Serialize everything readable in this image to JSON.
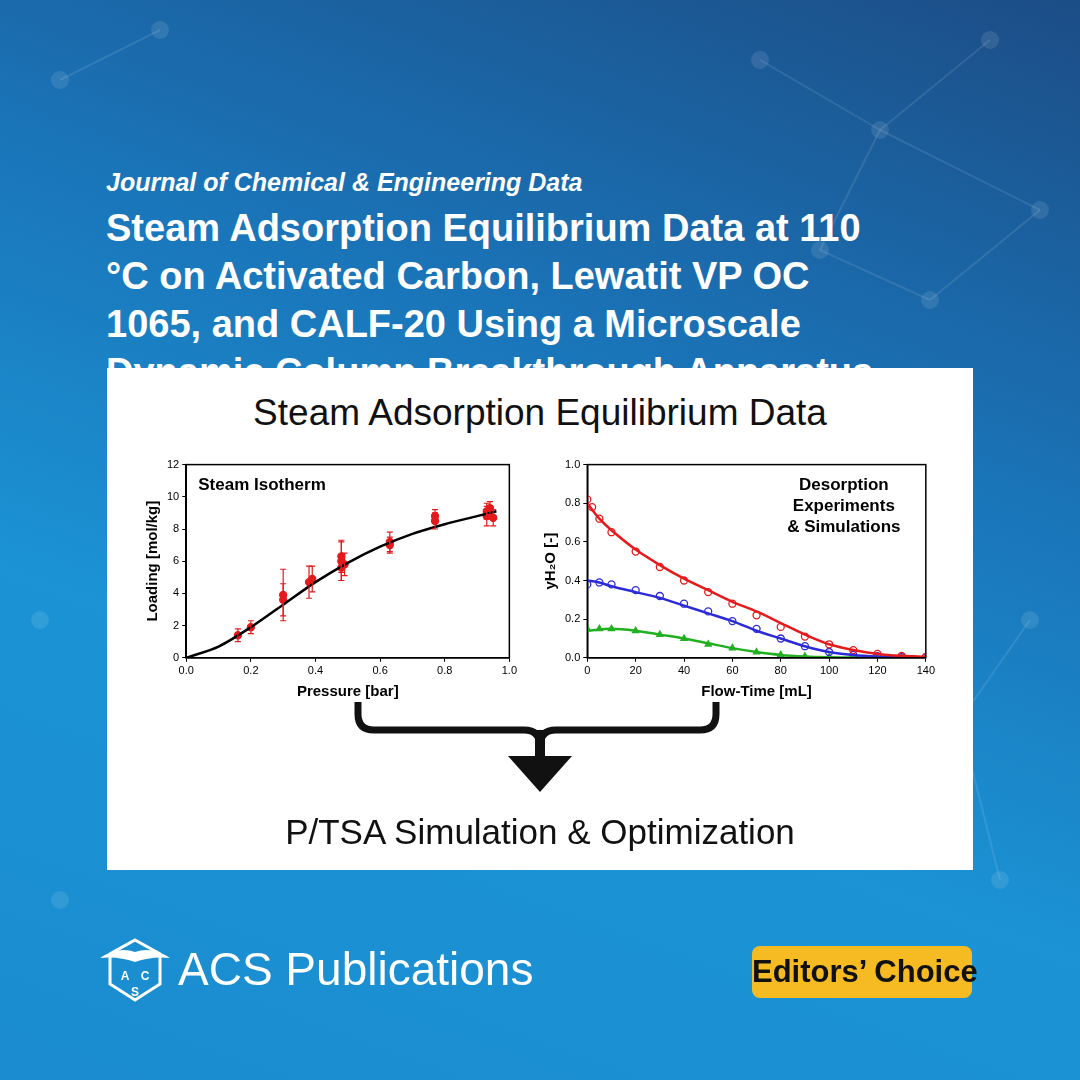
{
  "header": {
    "journal": "Journal of Chemical & Engineering Data",
    "title_lines": [
      "Steam Adsorption Equilibrium Data at 110",
      "°C on Activated Carbon, Lewatit VP OC",
      "1065, and CALF-20 Using a Microscale",
      "Dynamic Column Breakthrough Apparatus"
    ]
  },
  "abstract": {
    "heading": "Steam Adsorption Equilibrium Data",
    "footer": "P/TSA Simulation & Optimization"
  },
  "chart_data": [
    {
      "type": "scatter",
      "title": "Steam Isotherm",
      "x_label": "Pressure [bar]",
      "y_label": "Loading [mol/kg]",
      "xlim": [
        0,
        1
      ],
      "xticks": [
        {
          "value": 0,
          "label": "0.0"
        },
        {
          "value": 0.2,
          "label": "0.2"
        },
        {
          "value": 0.4,
          "label": "0.4"
        },
        {
          "value": 0.6,
          "label": "0.6"
        },
        {
          "value": 0.8,
          "label": "0.8"
        },
        {
          "value": 1,
          "label": "1.0"
        }
      ],
      "ylim": [
        0,
        12
      ],
      "yticks": [
        0,
        2,
        4,
        6,
        8,
        10,
        12
      ],
      "grid": false,
      "series": [
        {
          "type": "scatter",
          "color": "#e41a1c",
          "marker": "circle",
          "x": [
            0.16,
            0.2,
            0.3,
            0.3,
            0.38,
            0.39,
            0.48,
            0.48,
            0.48,
            0.49,
            0.63,
            0.63,
            0.77,
            0.77,
            0.93,
            0.93,
            0.94,
            0.95
          ],
          "values": [
            1.4,
            1.9,
            3.9,
            3.6,
            4.7,
            4.9,
            5.6,
            6.0,
            6.3,
            5.8,
            7.2,
            7.0,
            8.5,
            8.8,
            8.8,
            9.1,
            9.3,
            8.7
          ],
          "errors": [
            0.4,
            0.4,
            1.6,
            1.0,
            1.0,
            0.8,
            0.8,
            1.2,
            1.0,
            0.7,
            0.6,
            0.5,
            0.5,
            0.4,
            0.6,
            0.5,
            0.4,
            0.5
          ]
        },
        {
          "type": "line",
          "color": "#000000",
          "line_style": "solid",
          "x": [
            0,
            0.1,
            0.2,
            0.3,
            0.4,
            0.5,
            0.6,
            0.7,
            0.8,
            0.9,
            0.96
          ],
          "values": [
            0,
            0.7,
            1.9,
            3.3,
            4.7,
            5.9,
            6.9,
            7.7,
            8.3,
            8.8,
            9.1
          ]
        }
      ]
    },
    {
      "type": "scatter",
      "title": [
        "Desorption",
        "Experiments",
        "& Simulations"
      ],
      "x_label": "Flow-Time [mL]",
      "y_label": "yH₂O [-]",
      "xlim": [
        0,
        140
      ],
      "xticks": [
        0,
        20,
        40,
        60,
        80,
        100,
        120,
        140
      ],
      "ylim": [
        0,
        1
      ],
      "yticks": [
        {
          "value": 0,
          "label": "0.0"
        },
        {
          "value": 0.2,
          "label": "0.2"
        },
        {
          "value": 0.4,
          "label": "0.4"
        },
        {
          "value": 0.6,
          "label": "0.6"
        },
        {
          "value": 0.8,
          "label": "0.8"
        },
        {
          "value": 1,
          "label": "1.0"
        }
      ],
      "grid": false,
      "series": [
        {
          "type": "scatter",
          "color": "#e41a1c",
          "marker": "circle_open",
          "x": [
            0,
            2,
            5,
            10,
            20,
            30,
            40,
            50,
            60,
            70,
            80,
            90,
            100,
            110,
            120,
            130,
            140
          ],
          "values": [
            0.82,
            0.78,
            0.72,
            0.65,
            0.55,
            0.47,
            0.4,
            0.34,
            0.28,
            0.22,
            0.16,
            0.11,
            0.07,
            0.04,
            0.02,
            0.01,
            0.005
          ]
        },
        {
          "type": "line",
          "color": "#e41a1c",
          "line_style": "solid",
          "x": [
            0,
            5,
            10,
            20,
            30,
            40,
            50,
            60,
            70,
            80,
            90,
            100,
            110,
            120,
            130,
            140
          ],
          "values": [
            0.8,
            0.72,
            0.66,
            0.56,
            0.48,
            0.41,
            0.35,
            0.29,
            0.24,
            0.18,
            0.12,
            0.07,
            0.04,
            0.02,
            0.01,
            0.005
          ]
        },
        {
          "type": "scatter",
          "color": "#2b2bd8",
          "marker": "circle_open",
          "x": [
            0,
            5,
            10,
            20,
            30,
            40,
            50,
            60,
            70,
            80,
            90,
            100,
            110,
            120,
            130,
            140
          ],
          "values": [
            0.38,
            0.39,
            0.38,
            0.35,
            0.32,
            0.28,
            0.24,
            0.19,
            0.15,
            0.1,
            0.06,
            0.03,
            0.015,
            0.008,
            0.004,
            0.002
          ]
        },
        {
          "type": "line",
          "color": "#2b2bd8",
          "line_style": "solid",
          "x": [
            0,
            5,
            10,
            20,
            30,
            40,
            50,
            60,
            70,
            80,
            90,
            100,
            110,
            120,
            130,
            140
          ],
          "values": [
            0.4,
            0.39,
            0.37,
            0.34,
            0.31,
            0.27,
            0.23,
            0.19,
            0.14,
            0.1,
            0.06,
            0.03,
            0.015,
            0.007,
            0.003,
            0.002
          ]
        },
        {
          "type": "scatter",
          "color": "#22b022",
          "marker": "triangle",
          "x": [
            0,
            5,
            10,
            20,
            30,
            40,
            50,
            60,
            70,
            80,
            90,
            100,
            110,
            120,
            130,
            140
          ],
          "values": [
            0.15,
            0.15,
            0.15,
            0.14,
            0.12,
            0.1,
            0.07,
            0.05,
            0.03,
            0.015,
            0.008,
            0.004,
            0.002,
            0.001,
            0,
            0
          ]
        },
        {
          "type": "line",
          "color": "#22b022",
          "line_style": "solid",
          "x": [
            0,
            10,
            20,
            30,
            40,
            50,
            60,
            70,
            80,
            90,
            100,
            110,
            120,
            130,
            140
          ],
          "values": [
            0.14,
            0.15,
            0.14,
            0.12,
            0.1,
            0.075,
            0.05,
            0.03,
            0.015,
            0.007,
            0.003,
            0.001,
            0,
            0,
            0
          ]
        }
      ]
    }
  ],
  "footer": {
    "logo_letters": [
      "A",
      "C",
      "S"
    ],
    "publisher": "ACS Publications",
    "badge": "Editors’ Choice"
  }
}
